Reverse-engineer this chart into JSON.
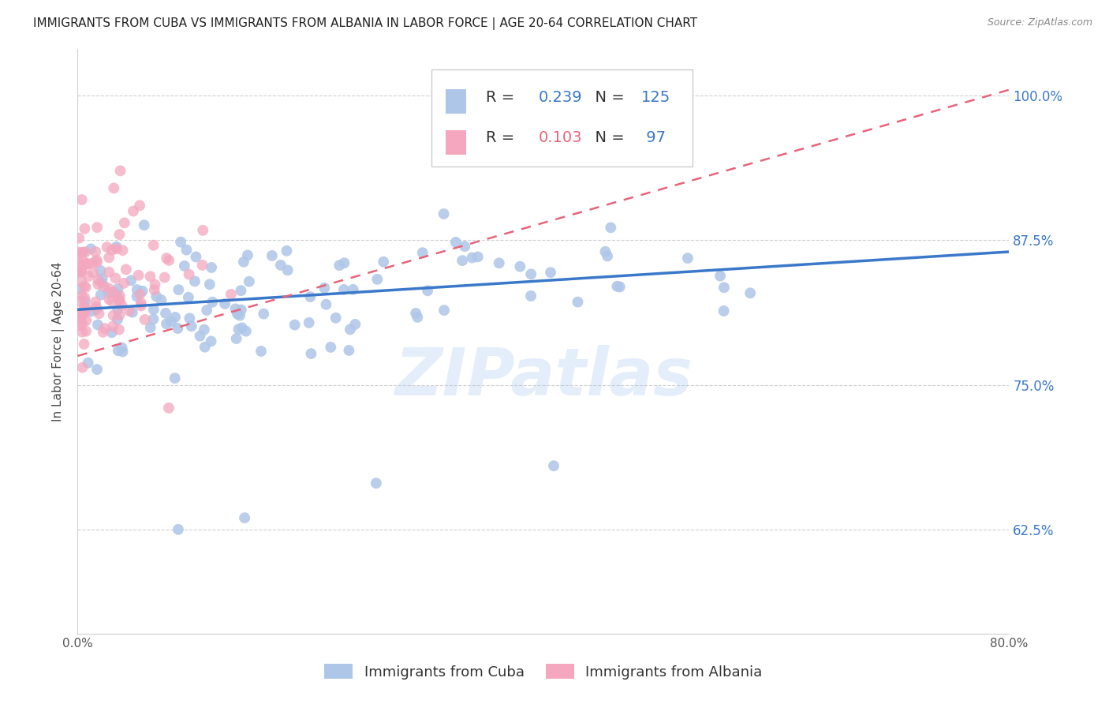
{
  "title": "IMMIGRANTS FROM CUBA VS IMMIGRANTS FROM ALBANIA IN LABOR FORCE | AGE 20-64 CORRELATION CHART",
  "source": "Source: ZipAtlas.com",
  "ylabel": "In Labor Force | Age 20-64",
  "ytick_labels": [
    "100.0%",
    "87.5%",
    "75.0%",
    "62.5%"
  ],
  "ytick_values": [
    1.0,
    0.875,
    0.75,
    0.625
  ],
  "xmin": 0.0,
  "xmax": 0.8,
  "ymin": 0.535,
  "ymax": 1.04,
  "cuba_R": 0.239,
  "cuba_N": 125,
  "albania_R": 0.103,
  "albania_N": 97,
  "cuba_color": "#aec6e8",
  "cuba_edge_color": "#aec6e8",
  "cuba_line_color": "#3a78c9",
  "albania_color": "#f4a7be",
  "albania_edge_color": "#f4a7be",
  "albania_line_color": "#e8647a",
  "watermark": "ZIPatlas",
  "title_fontsize": 11,
  "axis_label_fontsize": 11,
  "tick_fontsize": 11,
  "legend_fontsize": 14,
  "legend_text_color": "#333333",
  "legend_value_color": "#3a78c9",
  "legend_albania_value_color": "#e8647a"
}
